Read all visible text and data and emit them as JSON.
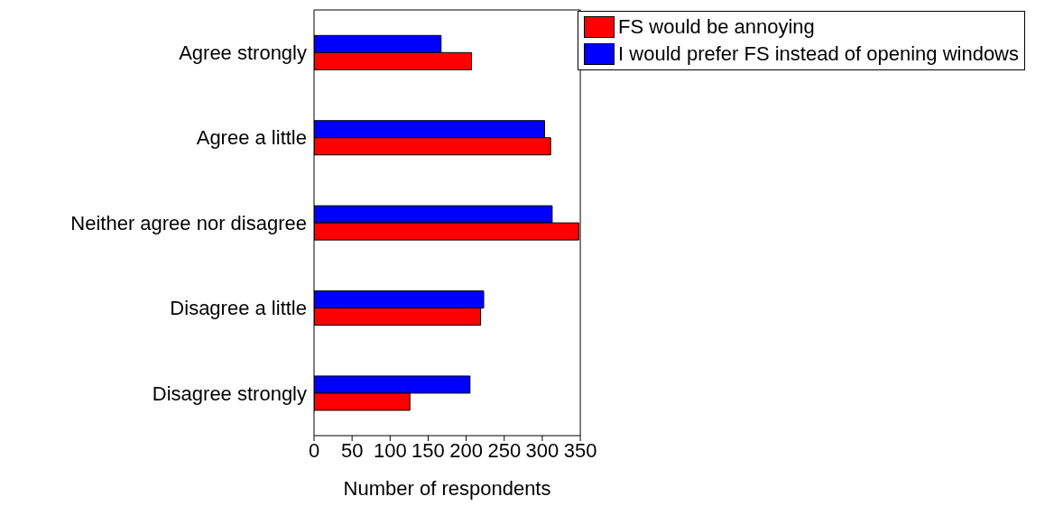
{
  "chart_data": {
    "type": "bar",
    "orientation": "horizontal",
    "xlabel": "Number of respondents",
    "categories": [
      "Agree strongly",
      "Agree a little",
      "Neither agree nor disagree",
      "Disagree a little",
      "Disagree strongly"
    ],
    "series": [
      {
        "name": "FS would be annoying",
        "color": "#ff0000",
        "values": [
          207,
          311,
          348,
          219,
          126
        ]
      },
      {
        "name": "I would prefer FS instead of opening windows",
        "color": "#0000ff",
        "values": [
          167,
          303,
          313,
          223,
          205
        ]
      }
    ],
    "xlim": [
      0,
      350
    ],
    "xticks": [
      0,
      50,
      100,
      150,
      200,
      250,
      300,
      350
    ],
    "grid": false,
    "legend": "top right"
  }
}
